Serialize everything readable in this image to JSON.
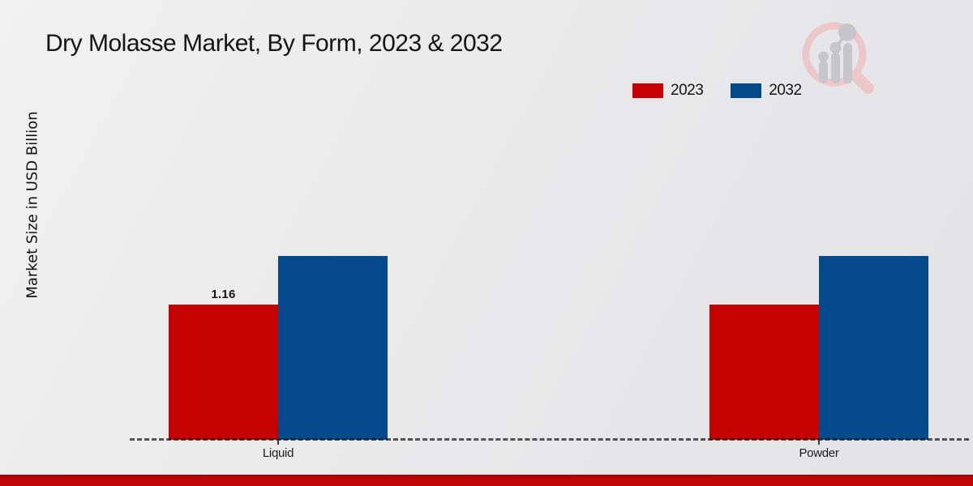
{
  "page": {
    "background_color": "#e9e9eb",
    "footer_bar_color": "#c10606"
  },
  "watermark": {
    "ring_color": "#ecc7ca",
    "bars_color": "#c6c6ca"
  },
  "chart_data": {
    "type": "bar",
    "title": "Dry Molasse Market, By Form, 2023 & 2032",
    "ylabel": "Market Size in USD Billion",
    "xlabel": "",
    "categories": [
      "Liquid",
      "Powder"
    ],
    "series": [
      {
        "name": "2023",
        "color": "#c60101",
        "values": [
          1.16,
          1.16
        ],
        "value_labels": [
          "1.16",
          ""
        ]
      },
      {
        "name": "2032",
        "color": "#04498c",
        "values": [
          1.58,
          1.58
        ],
        "value_labels": [
          "",
          ""
        ]
      }
    ],
    "ylim": [
      0,
      3.2
    ],
    "grid": false,
    "legend_position": "top-right",
    "baseline_style": "dashed"
  }
}
